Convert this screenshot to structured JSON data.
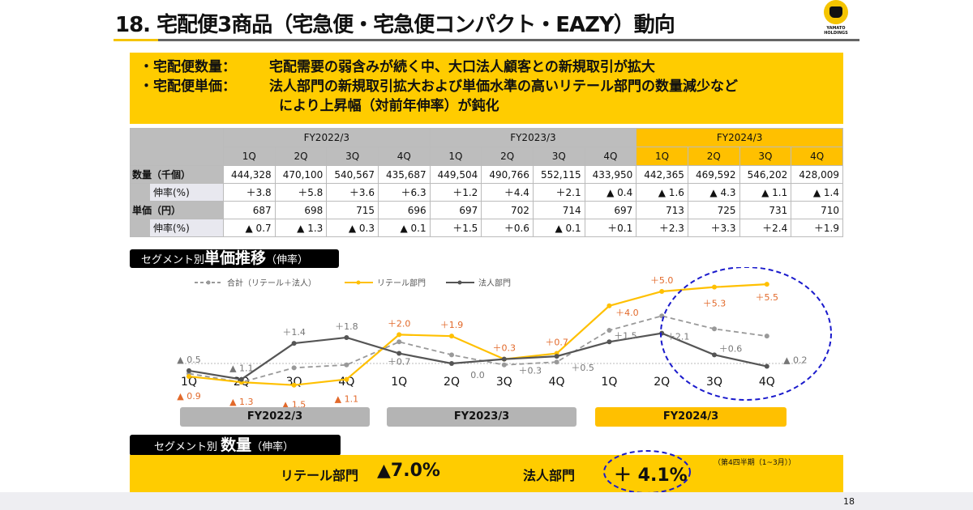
{
  "title": "18. 宅配便3商品（宅急便・宅急便コンパクト・EAZY）動向",
  "logo": {
    "text1": "YAMATO",
    "text2": "HOLDINGS"
  },
  "summary": [
    {
      "label": "・宅配便数量：",
      "text": "宅配需要の弱含みが続く中、大口法人顧客との新規取引が拡大"
    },
    {
      "label": "・宅配便単価：",
      "text": "法人部門の新規取引拡大および単価水準の高いリテール部門の数量減少など",
      "cont": "により上昇幅（対前年伸率）が鈍化"
    }
  ],
  "table": {
    "years": [
      "FY2022/3",
      "FY2023/3",
      "FY2024/3"
    ],
    "quarters": [
      "1Q",
      "2Q",
      "3Q",
      "4Q",
      "1Q",
      "2Q",
      "3Q",
      "4Q",
      "1Q",
      "2Q",
      "3Q",
      "4Q"
    ],
    "rows": [
      {
        "label": "数量（千個）",
        "values": [
          "444,328",
          "470,100",
          "540,567",
          "435,687",
          "449,504",
          "490,766",
          "552,115",
          "433,950",
          "442,365",
          "469,592",
          "546,202",
          "428,009"
        ]
      },
      {
        "label": "伸率(%)",
        "values": [
          "＋3.8",
          "＋5.8",
          "＋3.6",
          "＋6.3",
          "＋1.2",
          "＋4.4",
          "＋2.1",
          "▲ 0.4",
          "▲ 1.6",
          "▲ 4.3",
          "▲ 1.1",
          "▲ 1.4"
        ]
      },
      {
        "label": "単価（円）",
        "values": [
          "687",
          "698",
          "715",
          "696",
          "697",
          "702",
          "714",
          "697",
          "713",
          "725",
          "731",
          "710"
        ]
      },
      {
        "label": "伸率(%)",
        "values": [
          "▲ 0.7",
          "▲ 1.3",
          "▲ 0.3",
          "▲ 0.1",
          "＋1.5",
          "＋0.6",
          "▲ 0.1",
          "＋0.1",
          "＋2.3",
          "＋3.3",
          "＋2.4",
          "＋1.9"
        ]
      }
    ]
  },
  "price_section": {
    "prefix": "セグメント別",
    "main": "単価推移",
    "suffix": "（伸率）"
  },
  "chart_data": {
    "type": "line",
    "categories": [
      "1Q",
      "2Q",
      "3Q",
      "4Q",
      "1Q",
      "2Q",
      "3Q",
      "4Q",
      "1Q",
      "2Q",
      "3Q",
      "4Q"
    ],
    "groups": [
      "FY2022/3",
      "FY2023/3",
      "FY2024/3"
    ],
    "legend_position": "top",
    "series": [
      {
        "name": "合計（リテール＋法人）",
        "color": "#999999",
        "dashed": true,
        "values": [
          -0.7,
          -1.3,
          -0.3,
          -0.1,
          1.5,
          0.6,
          -0.1,
          0.1,
          2.3,
          3.3,
          2.4,
          1.9
        ],
        "labels": []
      },
      {
        "name": "リテール部門",
        "color": "#ffc000",
        "label_color": "#e2692a",
        "values": [
          -0.9,
          -1.3,
          -1.5,
          -1.1,
          2.0,
          1.9,
          0.3,
          0.7,
          4.0,
          5.0,
          5.3,
          5.5
        ],
        "labels": [
          "▲ 0.9",
          "▲ 1.3",
          "▲ 1.5",
          "▲ 1.1",
          "＋2.0",
          "＋1.9",
          "＋0.3",
          "＋0.7",
          "＋4.0",
          "＋5.0",
          "＋5.3",
          "＋5.5"
        ]
      },
      {
        "name": "法人部門",
        "color": "#555555",
        "label_color": "#777777",
        "values": [
          -0.5,
          -1.1,
          1.4,
          1.8,
          0.7,
          0.0,
          0.3,
          0.5,
          1.5,
          2.1,
          0.6,
          -0.2
        ],
        "labels": [
          "▲ 0.5",
          "▲ 1.1",
          "＋1.4",
          "＋1.8",
          "＋0.7",
          "0.0",
          "＋0.3",
          "＋0.5",
          "＋1.5",
          "＋2.1",
          "＋0.6",
          "▲ 0.2"
        ]
      }
    ],
    "highlight": "FY2024/3 2Q-4Q"
  },
  "volume_section": {
    "prefix": "セグメント別",
    "main": "数量",
    "suffix": "（伸率）",
    "retail_label": "リテール部門",
    "retail_value": "▲7.0%",
    "corp_label": "法人部門",
    "corp_value": "＋ 4.1%",
    "note": "（第4四半期（1~3月））"
  },
  "page_number": "18",
  "colors": {
    "accent": "#ffcc00",
    "highlight": "#1a1acc"
  }
}
